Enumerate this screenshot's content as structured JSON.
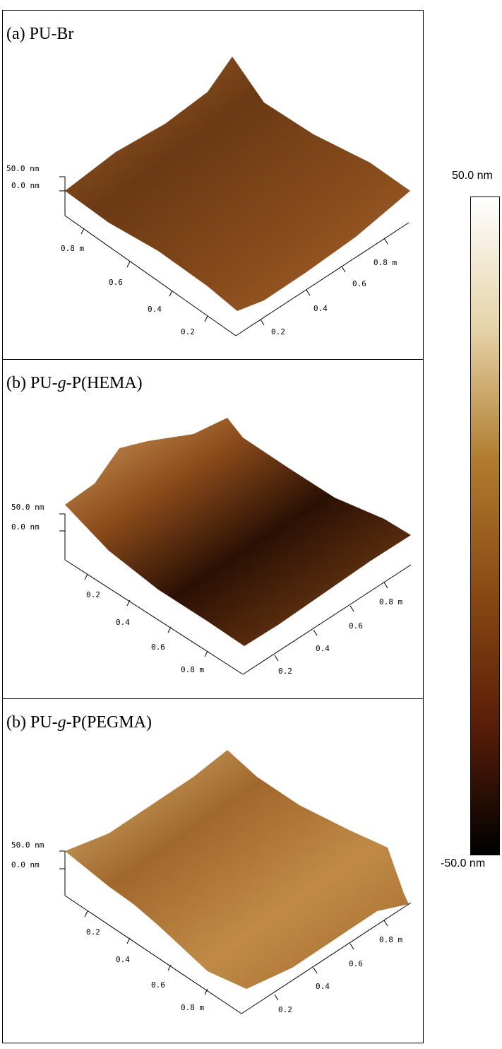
{
  "panels": [
    {
      "id": "a",
      "title_prefix": "(a) PU-Br",
      "title_italic": "",
      "title_suffix": "",
      "z_top_label": "50.0 nm",
      "z_zero_label": "0.0 nm",
      "left_axis_ticks": [
        "0.8 m",
        "0.6",
        "0.4",
        "0.2"
      ],
      "right_axis_ticks": [
        "0.8 m",
        "0.6",
        "0.4",
        "0.2"
      ],
      "colors": [
        "#3b1c08",
        "#6b3914",
        "#8a4d1d",
        "#a8682b"
      ]
    },
    {
      "id": "b",
      "title_prefix": "(b) PU-",
      "title_italic": "g",
      "title_suffix": "-P(HEMA)",
      "z_top_label": "50.0 nm",
      "z_zero_label": "0.0 nm",
      "left_axis_ticks": [
        "0.2",
        "0.4",
        "0.6",
        "0.8 m"
      ],
      "right_axis_ticks": [
        "0.8 m",
        "0.6",
        "0.4",
        "0.2"
      ],
      "colors": [
        "#2a1004",
        "#5a2a0c",
        "#8a4a1a",
        "#d4a060"
      ]
    },
    {
      "id": "c",
      "title_prefix": "(b) PU-",
      "title_italic": "g",
      "title_suffix": "-P(PEGMA)",
      "z_top_label": "50.0 nm",
      "z_zero_label": "0.0 nm",
      "left_axis_ticks": [
        "0.2",
        "0.4",
        "0.6",
        "0.8 m"
      ],
      "right_axis_ticks": [
        "0.8 m",
        "0.6",
        "0.4",
        "0.2"
      ],
      "colors": [
        "#6a3a12",
        "#a0682c",
        "#c08a46",
        "#e0b878"
      ]
    }
  ],
  "colorbar": {
    "max_label": "50.0 nm",
    "min_label": "-50.0 nm",
    "stops": [
      "#ffffff",
      "#e6d3a8",
      "#b07b2e",
      "#8a4a14",
      "#5a1e08",
      "#000000"
    ]
  }
}
